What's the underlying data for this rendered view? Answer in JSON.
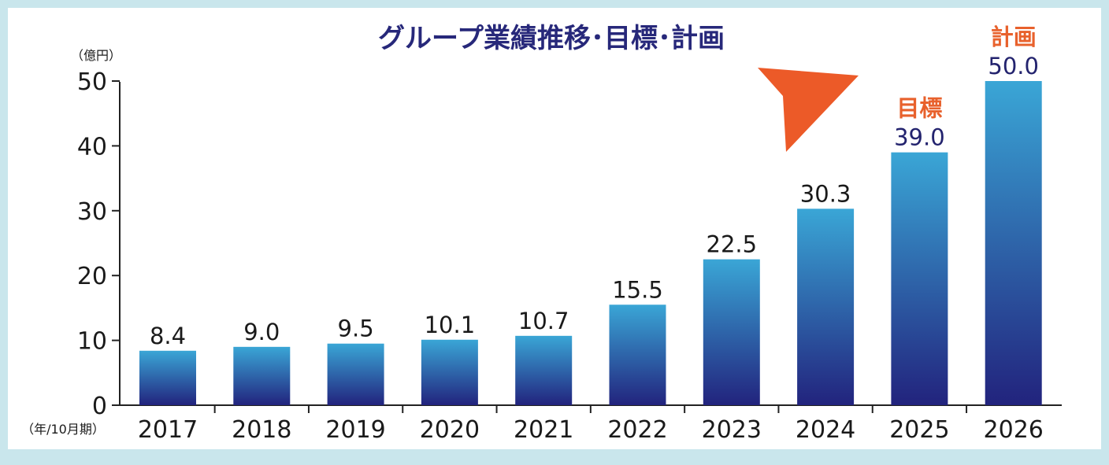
{
  "chart_data": {
    "type": "bar",
    "title": "グループ業績推移･目標･計画",
    "ylabel": "（億円）",
    "xlabel": "（年/10月期）",
    "categories": [
      "2017",
      "2018",
      "2019",
      "2020",
      "2021",
      "2022",
      "2023",
      "2024",
      "2025",
      "2026"
    ],
    "values": [
      8.4,
      9.0,
      9.5,
      10.1,
      10.7,
      15.5,
      22.5,
      30.3,
      39.0,
      50.0
    ],
    "value_labels": [
      "8.4",
      "9.0",
      "9.5",
      "10.1",
      "10.7",
      "15.5",
      "22.5",
      "30.3",
      "39.0",
      "50.0"
    ],
    "y_ticks": [
      "0",
      "10",
      "20",
      "30",
      "40",
      "50"
    ],
    "ylim": [
      0,
      50
    ],
    "grid": false,
    "legend": "none",
    "annotations": [
      {
        "category": "2025",
        "text": "目標"
      },
      {
        "category": "2026",
        "text": "計画"
      }
    ],
    "trend_arrow": true
  },
  "colors": {
    "bar_top": "#3aa6d6",
    "bar_bottom": "#22237d",
    "title": "#27287a",
    "annotation": "#e8612c",
    "arrow": "#ec5a28",
    "frame": "#c9e6ec"
  }
}
